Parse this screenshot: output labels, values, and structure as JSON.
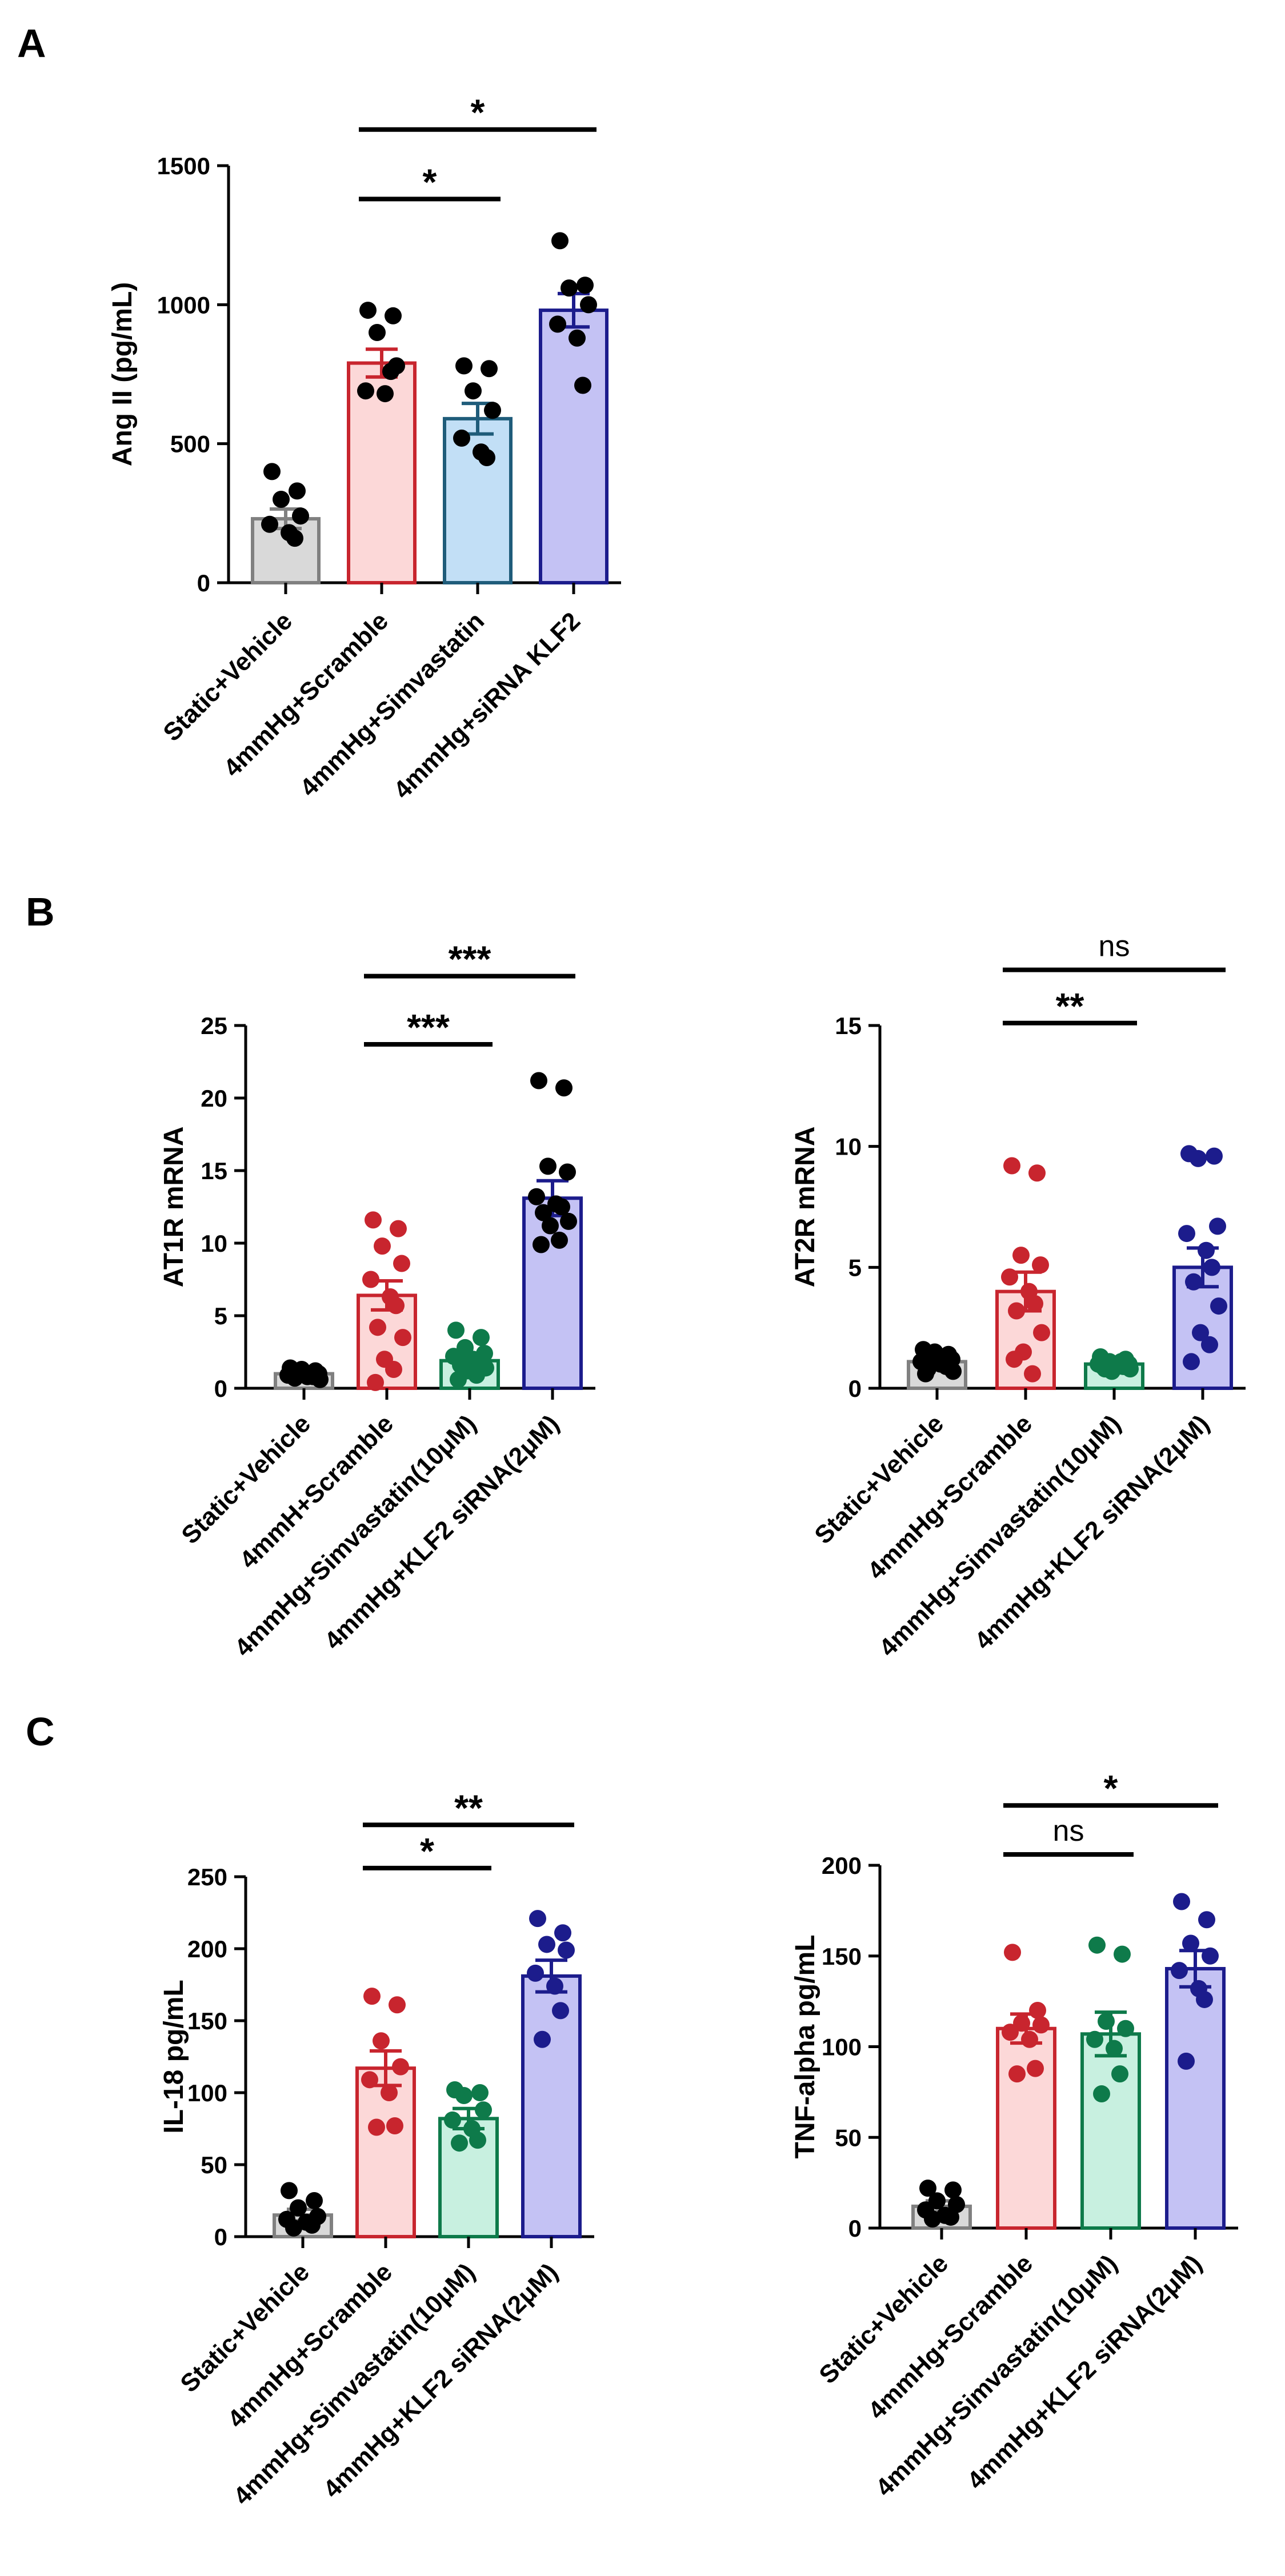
{
  "panel_letters": {
    "A": "A",
    "B": "B",
    "C": "C"
  },
  "chart_data": [
    {
      "id": "A",
      "type": "bar",
      "ylabel": "Ang II (pg/mL)",
      "ylim": [
        0,
        1500
      ],
      "yticks": [
        0,
        500,
        1000,
        1500
      ],
      "categories": [
        "Static+Vehicle",
        "4mmHg+Scramble",
        "4mmHg+Simvastatin",
        "4mmHg+siRNA KLF2"
      ],
      "means": [
        230,
        790,
        590,
        980
      ],
      "sem": [
        35,
        50,
        55,
        60
      ],
      "points": [
        [
          400,
          330,
          300,
          240,
          210,
          180,
          160
        ],
        [
          980,
          960,
          900,
          780,
          690,
          680,
          760
        ],
        [
          780,
          770,
          690,
          620,
          520,
          470,
          450
        ],
        [
          1230,
          1070,
          1060,
          1000,
          930,
          880,
          710
        ]
      ],
      "colors": {
        "fills": [
          "#d9d9d9",
          "#fcd8d8",
          "#c2dff6",
          "#c4c2f4"
        ],
        "edges": [
          "#808080",
          "#c8252e",
          "#1f5c7a",
          "#1c1c8c"
        ],
        "points": [
          "#000000",
          "#000000",
          "#000000",
          "#000000"
        ]
      },
      "significance": [
        {
          "from": 1,
          "to": 3,
          "label": "*",
          "value": 1630
        },
        {
          "from": 1,
          "to": 2,
          "label": "*",
          "value": 1380
        }
      ]
    },
    {
      "id": "B1",
      "type": "bar",
      "ylabel": "AT1R mRNA",
      "ylim": [
        0,
        25
      ],
      "yticks": [
        0,
        5,
        10,
        15,
        20,
        25
      ],
      "categories": [
        "Static+Vehicle",
        "4mmH+Scramble",
        "4mmHg+Simvastatin(10μM)",
        "4mmHg+KLF2 siRNA(2μM)"
      ],
      "means": [
        1.0,
        6.4,
        1.9,
        13.1
      ],
      "sem": [
        0.1,
        1.0,
        0.3,
        1.2
      ],
      "points": [
        [
          1.4,
          1.2,
          1.1,
          1.0,
          0.9,
          0.8,
          0.8,
          0.7,
          0.6,
          1.3,
          0.9,
          1.1
        ],
        [
          11.6,
          11.0,
          9.8,
          8.6,
          7.5,
          6.3,
          5.7,
          4.2,
          3.5,
          2.0,
          1.3,
          0.4
        ],
        [
          4.0,
          3.5,
          2.8,
          2.4,
          2.2,
          2.0,
          1.8,
          1.6,
          1.4,
          1.2,
          0.9,
          0.6
        ],
        [
          21.2,
          20.7,
          15.3,
          14.9,
          13.2,
          12.7,
          12.5,
          12.1,
          11.5,
          11.2,
          10.2,
          9.9
        ]
      ],
      "colors": {
        "fills": [
          "#d9d9d9",
          "#fcd8d8",
          "#c8f0e0",
          "#c4c2f4"
        ],
        "edges": [
          "#808080",
          "#c8252e",
          "#0e7a4a",
          "#1c1c8c"
        ],
        "points": [
          "#000000",
          "#c8252e",
          "#0e7a4a",
          "#000000"
        ]
      },
      "significance": [
        {
          "from": 1,
          "to": 3,
          "label": "***",
          "value": 28.4
        },
        {
          "from": 1,
          "to": 2,
          "label": "***",
          "value": 23.7
        }
      ]
    },
    {
      "id": "B2",
      "type": "bar",
      "ylabel": "AT2R mRNA",
      "ylim": [
        0,
        15
      ],
      "yticks": [
        0,
        5,
        10,
        15
      ],
      "categories": [
        "Static+Vehicle",
        "4mmHg+Scramble",
        "4mmHg+Simvastatin(10μM)",
        "4mmHg+KLF2 siRNA(2μM)"
      ],
      "means": [
        1.1,
        4.0,
        1.0,
        5.0
      ],
      "sem": [
        0.1,
        0.8,
        0.05,
        0.8
      ],
      "points": [
        [
          1.6,
          1.4,
          1.3,
          1.2,
          1.1,
          1.0,
          0.9,
          0.8,
          0.7,
          1.5,
          1.0,
          0.6
        ],
        [
          9.2,
          8.9,
          5.5,
          5.1,
          4.6,
          4.0,
          3.5,
          3.2,
          2.3,
          1.5,
          0.6,
          1.2
        ],
        [
          1.3,
          1.2,
          1.1,
          1.0,
          1.0,
          0.9,
          0.9,
          0.8,
          0.8,
          0.7,
          1.1,
          0.9
        ],
        [
          9.7,
          9.6,
          9.5,
          6.7,
          6.4,
          5.7,
          5.0,
          4.4,
          3.4,
          2.3,
          1.8,
          1.1
        ]
      ],
      "colors": {
        "fills": [
          "#d9d9d9",
          "#fcd8d8",
          "#c8f0e0",
          "#c4c2f4"
        ],
        "edges": [
          "#808080",
          "#c8252e",
          "#0e7a4a",
          "#1c1c8c"
        ],
        "points": [
          "#000000",
          "#c8252e",
          "#0e7a4a",
          "#1c1c8c"
        ]
      },
      "significance": [
        {
          "from": 1,
          "to": 3,
          "label": "ns",
          "value": 17.3
        },
        {
          "from": 1,
          "to": 2,
          "label": "**",
          "value": 15.1
        }
      ]
    },
    {
      "id": "C1",
      "type": "bar",
      "ylabel": "IL-18 pg/mL",
      "ylim": [
        0,
        250
      ],
      "yticks": [
        0,
        50,
        100,
        150,
        200,
        250
      ],
      "categories": [
        "Static+Vehicle",
        "4mmHg+Scramble",
        "4mmHg+Simvastatin(10μM)",
        "4mmHg+KLF2 siRNA(2μM)"
      ],
      "means": [
        15,
        117,
        82,
        181
      ],
      "sem": [
        4,
        12,
        7,
        11
      ],
      "points": [
        [
          32,
          25,
          20,
          14,
          12,
          10,
          8,
          6
        ],
        [
          167,
          161,
          136,
          118,
          109,
          100,
          77,
          76
        ],
        [
          102,
          100,
          98,
          88,
          81,
          75,
          67,
          65
        ],
        [
          221,
          211,
          203,
          199,
          183,
          174,
          157,
          137
        ]
      ],
      "colors": {
        "fills": [
          "#d9d9d9",
          "#fcd8d8",
          "#c8f0e0",
          "#c4c2f4"
        ],
        "edges": [
          "#808080",
          "#c8252e",
          "#0e7a4a",
          "#1c1c8c"
        ],
        "points": [
          "#000000",
          "#c8252e",
          "#0e7a4a",
          "#1c1c8c"
        ]
      },
      "significance": [
        {
          "from": 1,
          "to": 3,
          "label": "**",
          "value": 286
        },
        {
          "from": 1,
          "to": 2,
          "label": "*",
          "value": 256
        }
      ]
    },
    {
      "id": "C2",
      "type": "bar",
      "ylabel": "TNF-alpha pg/mL",
      "ylim": [
        0,
        200
      ],
      "yticks": [
        0,
        50,
        100,
        150,
        200
      ],
      "categories": [
        "Static+Vehicle",
        "4mmHg+Scramble",
        "4mmHg+Simvastatin(10μM)",
        "4mmHg+KLF2 siRNA(2μM)"
      ],
      "means": [
        12,
        110,
        107,
        143
      ],
      "sem": [
        3,
        8,
        12,
        10
      ],
      "points": [
        [
          22,
          21,
          15,
          13,
          10,
          7,
          6,
          5
        ],
        [
          152,
          120,
          113,
          112,
          108,
          104,
          88,
          85
        ],
        [
          156,
          151,
          114,
          110,
          104,
          99,
          85,
          74
        ],
        [
          180,
          170,
          157,
          150,
          142,
          132,
          126,
          92
        ]
      ],
      "colors": {
        "fills": [
          "#d9d9d9",
          "#fcd8d8",
          "#c8f0e0",
          "#c4c2f4"
        ],
        "edges": [
          "#808080",
          "#c8252e",
          "#0e7a4a",
          "#1c1c8c"
        ],
        "points": [
          "#000000",
          "#c8252e",
          "#0e7a4a",
          "#1c1c8c"
        ]
      },
      "significance": [
        {
          "from": 1,
          "to": 3,
          "label": "*",
          "value": 233
        },
        {
          "from": 1,
          "to": 2,
          "label": "ns",
          "value": 206
        }
      ]
    }
  ]
}
